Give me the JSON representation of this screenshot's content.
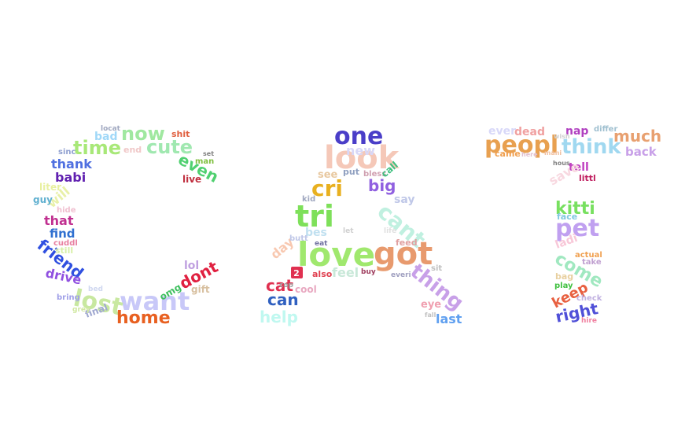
{
  "shape_text": "CAT",
  "words": [
    {
      "text": "love",
      "color": "#a0e86e"
    },
    {
      "text": "got",
      "color": "#e89a6e"
    },
    {
      "text": "look",
      "color": "#f5c8b8"
    },
    {
      "text": "one",
      "color": "#4a3ec8"
    },
    {
      "text": "tri",
      "color": "#7ee05a"
    },
    {
      "text": "cri",
      "color": "#e8b020"
    },
    {
      "text": "cant",
      "color": "#c0f0e0"
    },
    {
      "text": "thing",
      "color": "#c8a0e8"
    },
    {
      "text": "peopl",
      "color": "#e8a050"
    },
    {
      "text": "think",
      "color": "#a0d8f0"
    },
    {
      "text": "much",
      "color": "#e8a070"
    },
    {
      "text": "pet",
      "color": "#c0a0f0"
    },
    {
      "text": "kitti",
      "color": "#78e060"
    },
    {
      "text": "come",
      "color": "#a0e8c0"
    },
    {
      "text": "keep",
      "color": "#e86040"
    },
    {
      "text": "right",
      "color": "#5050d8"
    },
    {
      "text": "want",
      "color": "#c8c8f8"
    },
    {
      "text": "lost",
      "color": "#c8e8a0"
    },
    {
      "text": "home",
      "color": "#e86020"
    },
    {
      "text": "time",
      "color": "#a8e878"
    },
    {
      "text": "now",
      "color": "#a0e8a0"
    },
    {
      "text": "cute",
      "color": "#a0e8b0"
    },
    {
      "text": "friend",
      "color": "#3050e0"
    },
    {
      "text": "dont",
      "color": "#e02040"
    },
    {
      "text": "even",
      "color": "#50d070"
    },
    {
      "text": "new",
      "color": "#d8d8f8"
    },
    {
      "text": "big",
      "color": "#9060e0"
    },
    {
      "text": "day",
      "color": "#f8c8b0"
    },
    {
      "text": "cat",
      "color": "#e03050"
    },
    {
      "text": "can",
      "color": "#3060c0"
    },
    {
      "text": "help",
      "color": "#c0f8f0"
    },
    {
      "text": "last",
      "color": "#60a0f0"
    },
    {
      "text": "feel",
      "color": "#c8e8d8"
    },
    {
      "text": "ever",
      "color": "#d8d8f8"
    },
    {
      "text": "dead",
      "color": "#f0a0a0"
    },
    {
      "text": "nap",
      "color": "#b040c0"
    },
    {
      "text": "back",
      "color": "#c8a0e8"
    },
    {
      "text": "tell",
      "color": "#c040c0"
    },
    {
      "text": "save",
      "color": "#f8d8e0"
    },
    {
      "text": "ladi",
      "color": "#f8c8d8"
    },
    {
      "text": "thank",
      "color": "#5070e0"
    },
    {
      "text": "babi",
      "color": "#6020b0"
    },
    {
      "text": "will",
      "color": "#e8f0a8"
    },
    {
      "text": "that",
      "color": "#c03090"
    },
    {
      "text": "find",
      "color": "#3070d0"
    },
    {
      "text": "drive",
      "color": "#9050e0"
    },
    {
      "text": "final",
      "color": "#a0a8d0"
    },
    {
      "text": "lol",
      "color": "#c0a0e0"
    },
    {
      "text": "gift",
      "color": "#d8c0a0"
    },
    {
      "text": "omg",
      "color": "#40c060"
    },
    {
      "text": "bad",
      "color": "#a0d8f8"
    },
    {
      "text": "end",
      "color": "#f0c8c8"
    },
    {
      "text": "sinc",
      "color": "#90a0d0"
    },
    {
      "text": "guy",
      "color": "#60b0d0"
    },
    {
      "text": "liter",
      "color": "#e8f0a0"
    },
    {
      "text": "hide",
      "color": "#f0c0d0"
    },
    {
      "text": "still",
      "color": "#d8f0a8"
    },
    {
      "text": "cuddl",
      "color": "#e880a0"
    },
    {
      "text": "bring",
      "color": "#a0a0e8"
    },
    {
      "text": "grey",
      "color": "#d0e8a0"
    },
    {
      "text": "bed",
      "color": "#d0d8f0"
    },
    {
      "text": "locat",
      "color": "#a0a8c0"
    },
    {
      "text": "shit",
      "color": "#e06040"
    },
    {
      "text": "man",
      "color": "#80c040"
    },
    {
      "text": "live",
      "color": "#c03040"
    },
    {
      "text": "set",
      "color": "#808080"
    },
    {
      "text": "see",
      "color": "#e8c8a0"
    },
    {
      "text": "put",
      "color": "#90a0c0"
    },
    {
      "text": "bless",
      "color": "#d0a0b0"
    },
    {
      "text": "call",
      "color": "#40c080"
    },
    {
      "text": "say",
      "color": "#c0c8e8"
    },
    {
      "text": "kid",
      "color": "#a0a8c0"
    },
    {
      "text": "let",
      "color": "#d0d0d0"
    },
    {
      "text": "life",
      "color": "#e0e0e0"
    },
    {
      "text": "bes",
      "color": "#c0e0f0"
    },
    {
      "text": "butt",
      "color": "#c0c8e8"
    },
    {
      "text": "eat",
      "color": "#7070a0"
    },
    {
      "text": "also",
      "color": "#e04050"
    },
    {
      "text": "buy",
      "color": "#a04060"
    },
    {
      "text": "feed",
      "color": "#e0a0a0"
    },
    {
      "text": "sit",
      "color": "#c0c0c0"
    },
    {
      "text": "everi",
      "color": "#a0a0c0"
    },
    {
      "text": "cool",
      "color": "#e8a8c0"
    },
    {
      "text": "cop",
      "color": "#a0a0a0"
    },
    {
      "text": "eye",
      "color": "#f0a0b0"
    },
    {
      "text": "play",
      "color": "#40c040"
    },
    {
      "text": "bag",
      "color": "#e8d0a0"
    },
    {
      "text": "face",
      "color": "#80c8e0"
    },
    {
      "text": "actual",
      "color": "#f0a050"
    },
    {
      "text": "take",
      "color": "#c0a0d0"
    },
    {
      "text": "check",
      "color": "#c0b0e0"
    },
    {
      "text": "hire",
      "color": "#f080a0"
    },
    {
      "text": "littl",
      "color": "#c02060"
    },
    {
      "text": "differ",
      "color": "#a0c0d0"
    },
    {
      "text": "came",
      "color": "#f0a050"
    },
    {
      "text": "here",
      "color": "#e0c0d0"
    },
    {
      "text": "hous",
      "color": "#808080"
    },
    {
      "text": "wish",
      "color": "#d0d0d0"
    },
    {
      "text": "fall",
      "color": "#c0c0c0"
    },
    {
      "text": "mani",
      "color": "#f0c0a0"
    },
    {
      "text": "2",
      "color": "#e03050"
    }
  ]
}
